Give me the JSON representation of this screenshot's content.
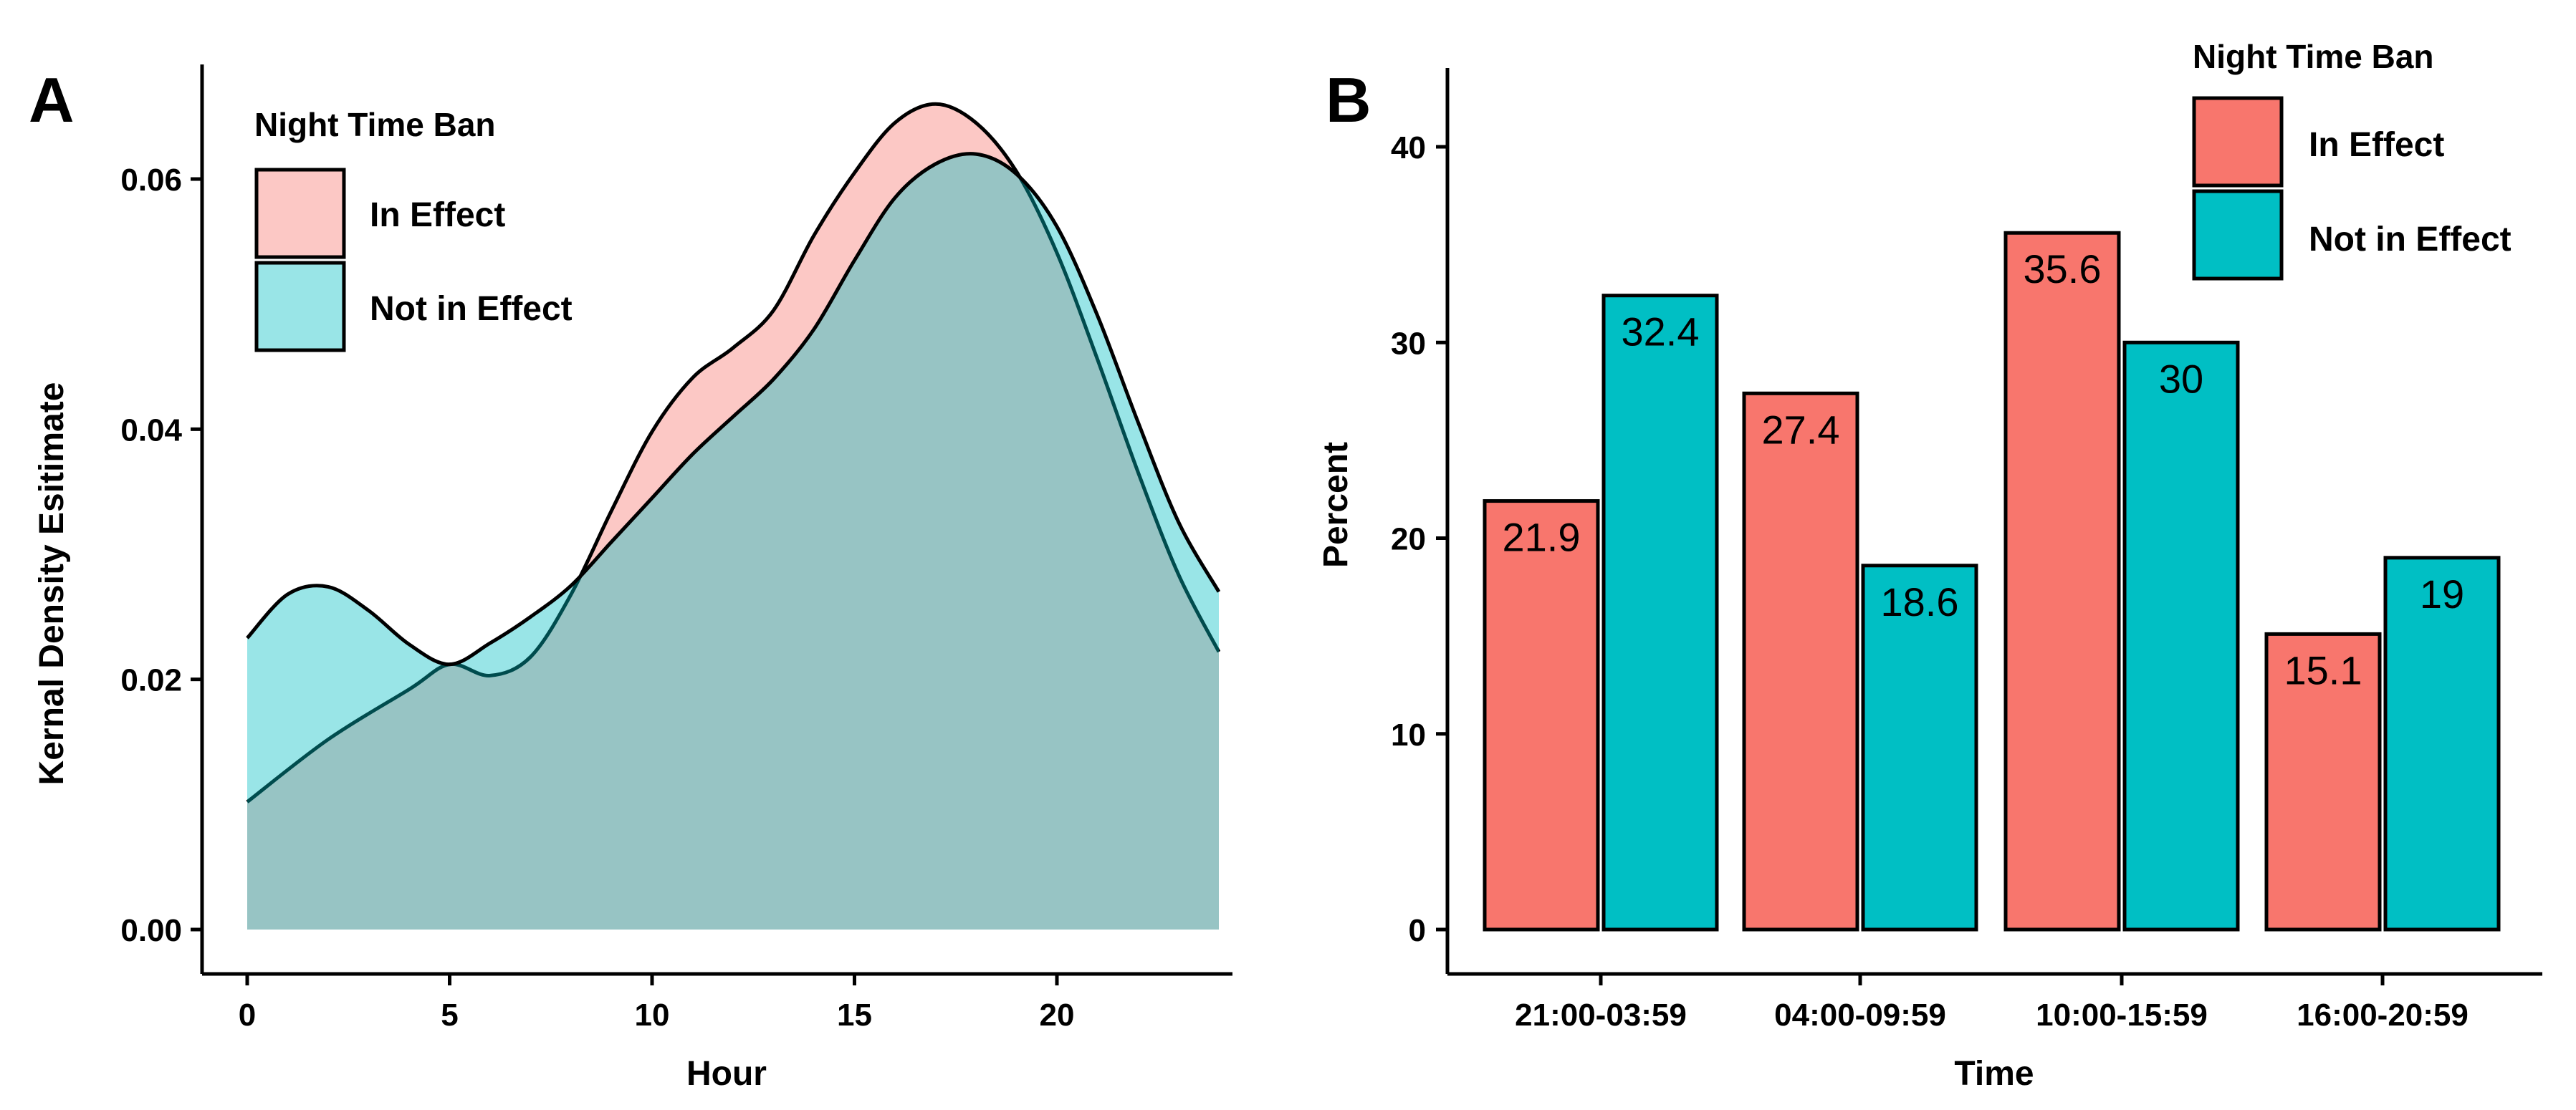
{
  "colors": {
    "in_effect": "#F8766D",
    "not_in_effect": "#00BFC4",
    "density_in_effect": "#F8766D",
    "density_not_in_effect": "#00BFC4"
  },
  "chart_data": [
    {
      "panel": "A",
      "type": "area",
      "xlabel": "Hour",
      "ylabel": "Kernal Density Esitimate",
      "xlim": [
        0,
        24
      ],
      "ylim": [
        0,
        0.068
      ],
      "x_ticks": [
        0,
        5,
        10,
        15,
        20
      ],
      "x_tick_labels": [
        "0",
        "5",
        "10",
        "15",
        "20"
      ],
      "y_ticks": [
        0,
        0.02,
        0.04,
        0.06
      ],
      "y_tick_labels": [
        "0.00",
        "0.02",
        "0.04",
        "0.06"
      ],
      "grid": false,
      "legend": {
        "title": "Night Time Ban",
        "position": "top-left"
      },
      "series": [
        {
          "name": "In Effect",
          "color": "#F8766D",
          "x": [
            0,
            2,
            4,
            5,
            6,
            7,
            8,
            9,
            10,
            11,
            12,
            13,
            14,
            15,
            16,
            17,
            18,
            19,
            20,
            21,
            22,
            23,
            24
          ],
          "y": [
            0.0102,
            0.0152,
            0.0192,
            0.0212,
            0.0203,
            0.0218,
            0.0268,
            0.0335,
            0.0398,
            0.0441,
            0.0465,
            0.0495,
            0.0555,
            0.0605,
            0.0645,
            0.066,
            0.0645,
            0.0606,
            0.0541,
            0.0456,
            0.0366,
            0.0284,
            0.0222
          ]
        },
        {
          "name": "Not in Effect",
          "color": "#00BFC4",
          "x": [
            0,
            1,
            2,
            3,
            4,
            5,
            6,
            7,
            8,
            9,
            10,
            11,
            12,
            13,
            14,
            15,
            16,
            17,
            18,
            19,
            20,
            21,
            22,
            23,
            24
          ],
          "y": [
            0.0233,
            0.0268,
            0.0274,
            0.0255,
            0.0228,
            0.0212,
            0.0229,
            0.025,
            0.0275,
            0.031,
            0.0345,
            0.038,
            0.041,
            0.044,
            0.048,
            0.0535,
            0.0585,
            0.0612,
            0.062,
            0.0604,
            0.0562,
            0.0491,
            0.0406,
            0.0326,
            0.027
          ]
        }
      ]
    },
    {
      "panel": "B",
      "type": "bar",
      "xlabel": "Time",
      "ylabel": "Percent",
      "categories": [
        "21:00-03:59",
        "04:00-09:59",
        "10:00-15:59",
        "16:00-20:59"
      ],
      "ylim": [
        0,
        44
      ],
      "y_ticks": [
        0,
        10,
        20,
        30,
        40
      ],
      "y_tick_labels": [
        "0",
        "10",
        "20",
        "30",
        "40"
      ],
      "grid": false,
      "legend": {
        "title": "Night Time Ban",
        "position": "top-right"
      },
      "series": [
        {
          "name": "In Effect",
          "color": "#F8766D",
          "values": [
            21.9,
            27.4,
            35.6,
            15.1
          ],
          "labels": [
            "21.9",
            "27.4",
            "35.6",
            "15.1"
          ]
        },
        {
          "name": "Not in Effect",
          "color": "#00BFC4",
          "values": [
            32.4,
            18.6,
            30,
            19
          ],
          "labels": [
            "32.4",
            "18.6",
            "30",
            "19"
          ]
        }
      ]
    }
  ]
}
